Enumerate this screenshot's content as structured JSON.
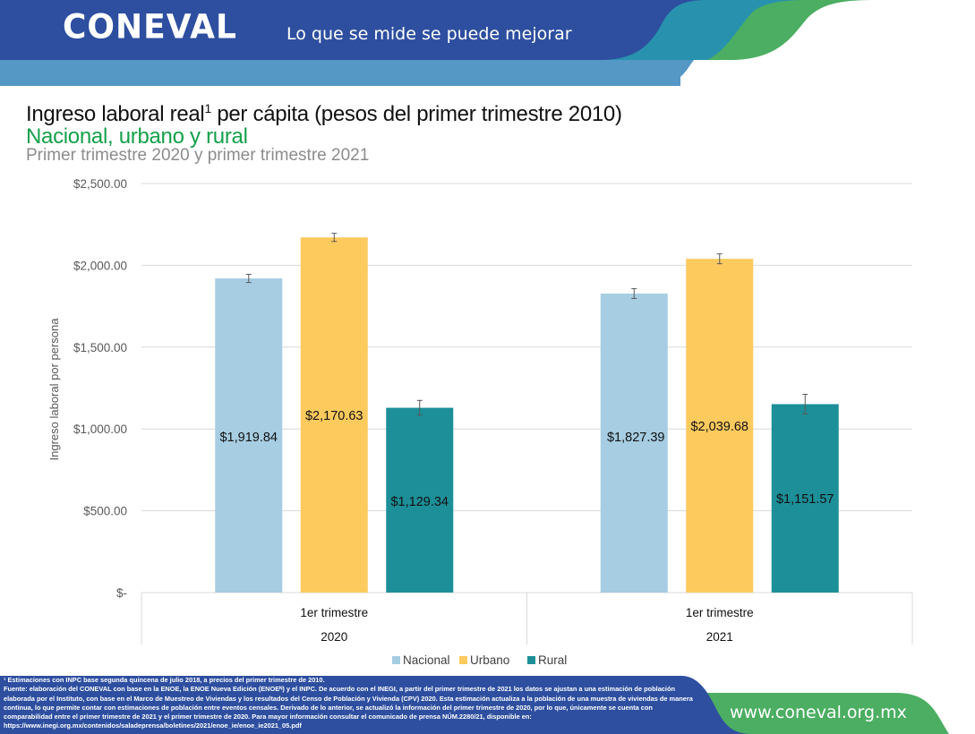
{
  "header": {
    "logo": "CONEVAL",
    "slogan": "Lo que se mide se puede mejorar",
    "colors": {
      "dark_blue": "#2e4fa0",
      "light_blue": "#5598c6",
      "teal": "#2892ae",
      "green": "#4bae62"
    }
  },
  "titles": {
    "title_main": "Ingreso laboral real",
    "title_sup": "1",
    "title_rest": " per cápita (pesos del primer trimestre 2010)",
    "subtitle": "Nacional, urbano y rural",
    "subtitle2": "Primer trimestre 2020 y primer trimestre 2021"
  },
  "chart_data": {
    "type": "bar",
    "title": "Ingreso laboral real per cápita (pesos del primer trimestre 2010)",
    "ylabel": "Ingreso laboral por persona",
    "xlabel": "",
    "ylim": [
      0,
      2500
    ],
    "yticks": [
      0,
      500,
      1000,
      1500,
      2000,
      2500
    ],
    "ytick_labels": [
      "$-",
      "$500.00",
      "$1,000.00",
      "$1,500.00",
      "$2,000.00",
      "$2,500.00"
    ],
    "grid": true,
    "legend_position": "bottom",
    "categories": [
      {
        "label": "1er trimestre",
        "group": "2020"
      },
      {
        "label": "1er trimestre",
        "group": "2021"
      }
    ],
    "series": [
      {
        "name": "Nacional",
        "color": "#a6cde2",
        "values": [
          1919.84,
          1827.39
        ],
        "labels": [
          "$1,919.84",
          "$1,827.39"
        ],
        "error": [
          25,
          30
        ]
      },
      {
        "name": "Urbano",
        "color": "#fdca5e",
        "values": [
          2170.63,
          2039.68
        ],
        "labels": [
          "$2,170.63",
          "$2,039.68"
        ],
        "error": [
          25,
          30
        ]
      },
      {
        "name": "Rural",
        "color": "#1d8f98",
        "values": [
          1129.34,
          1151.57
        ],
        "labels": [
          "$1,129.34",
          "$1,151.57"
        ],
        "error": [
          45,
          60
        ]
      }
    ]
  },
  "footer": {
    "note1": "¹ Estimaciones con INPC base segunda quincena de julio 2018, a precios del primer trimestre de 2010.",
    "note2": "Fuente: elaboración del CONEVAL con base en la ENOE, la ENOE Nueva Edición (ENOEᴺ) y el INPC. De acuerdo con el INEGI, a partir del primer trimestre de 2021 los datos se ajustan a una estimación de población elaborada por el Instituto, con base en el Marco de Muestreo de Viviendas y los resultados del Censo de Población y Vivienda (CPV) 2020. Esta estimación actualiza a la población de una muestra de viviendas de manera continua, lo que permite contar con estimaciones de población entre eventos censales. Derivado de lo anterior, se actualizó la información del primer trimestre de 2020, por lo que, únicamente se cuenta con comparabilidad entre el primer trimestre de 2021 y el primer trimestre de 2020. Para mayor información consultar el comunicado de prensa NÚM.2280/21, disponible en:",
    "note3": "https://www.inegi.org.mx/contenidos/saladeprensa/boletines/2021/enoe_ie/enoe_ie2021_05.pdf",
    "url": "www.coneval.org.mx"
  }
}
